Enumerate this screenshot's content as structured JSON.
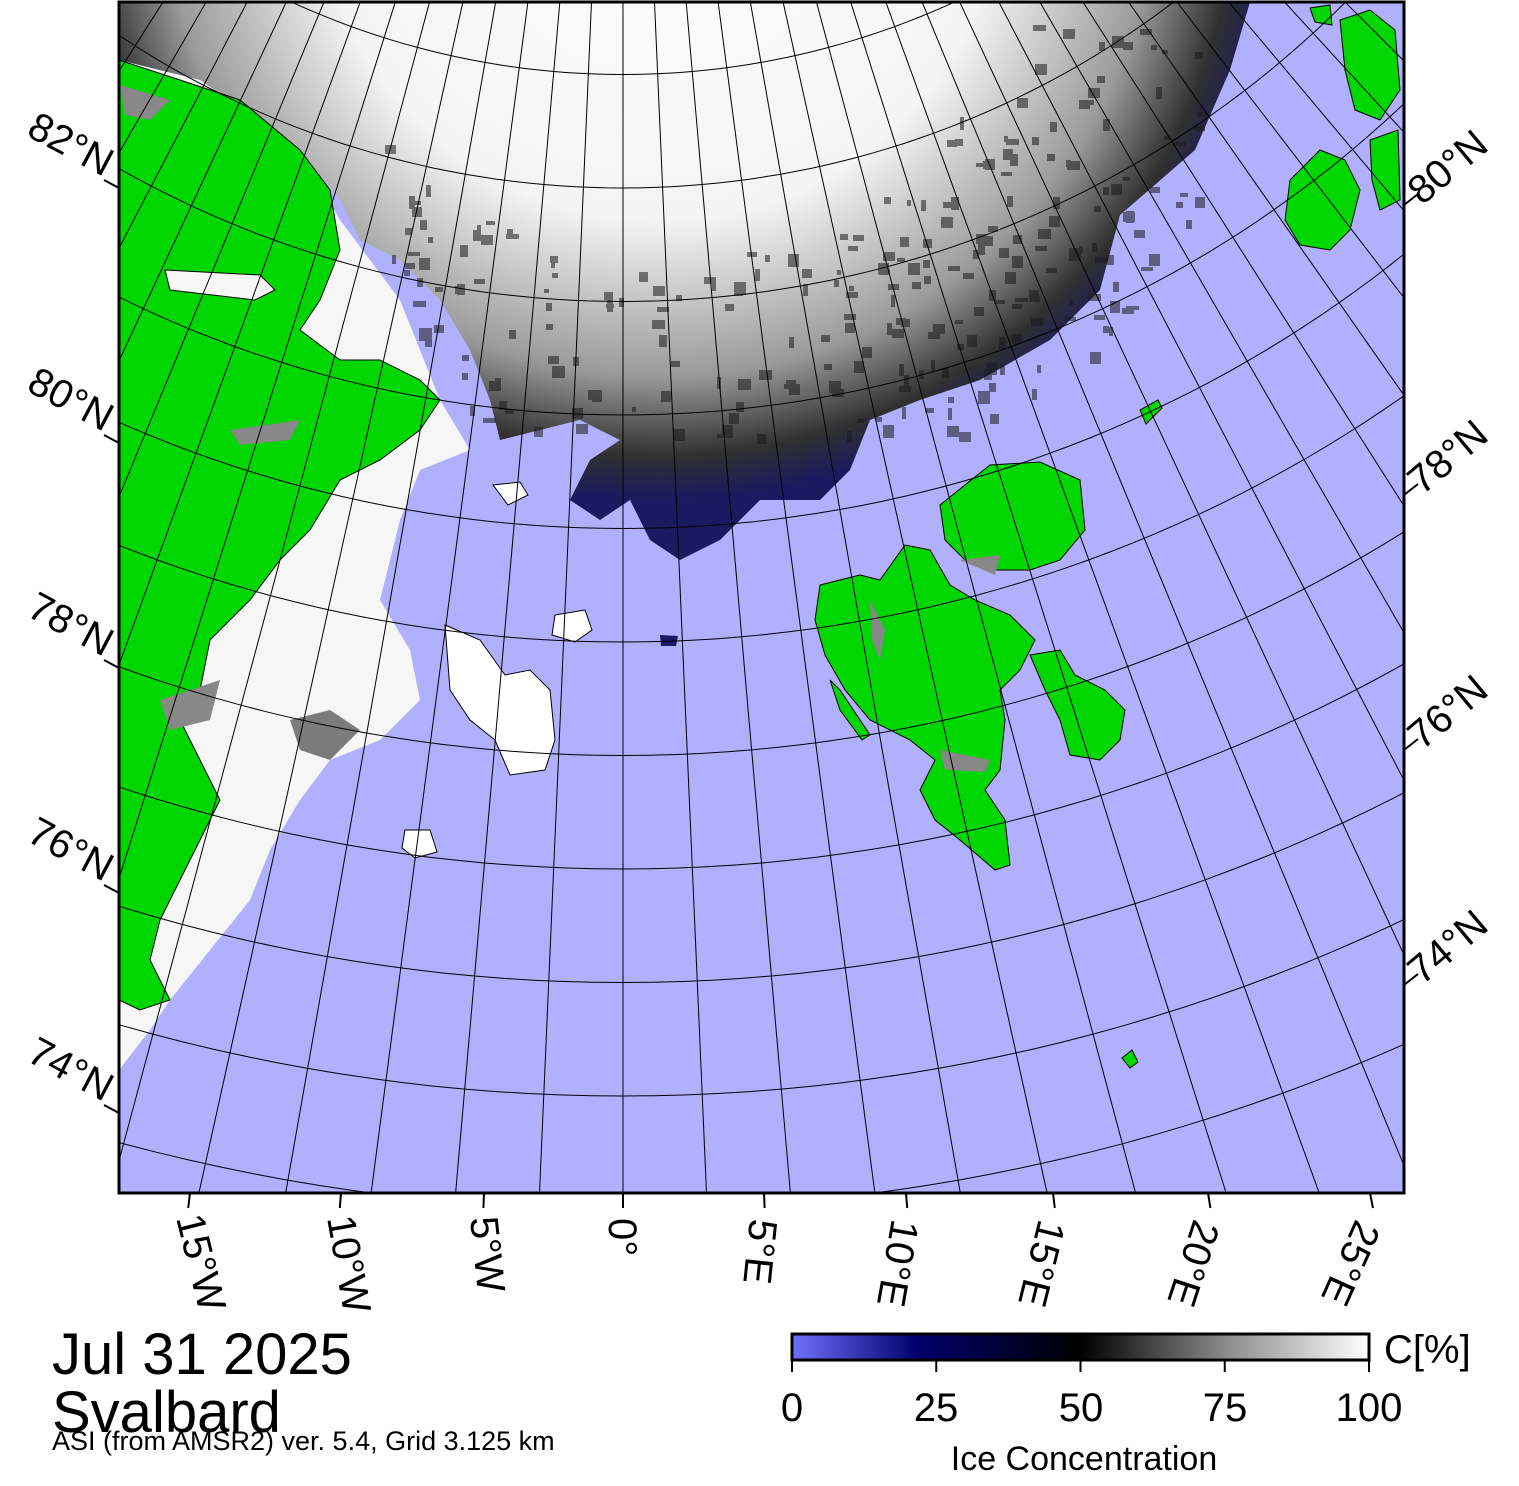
{
  "title": {
    "date": "Jul 31 2025",
    "region": "Svalbard",
    "subtitle": "ASI (from AMSR2) ver. 5.4,  Grid 3.125 km"
  },
  "map": {
    "lat_labels_left": [
      "82°N",
      "80°N",
      "78°N",
      "76°N",
      "74°N"
    ],
    "lat_labels_right": [
      "80°N",
      "78°N",
      "76°N",
      "74°N"
    ],
    "lon_labels_bottom": [
      "15°W",
      "10°W",
      "5°W",
      "0°",
      "5°E",
      "10°E",
      "15°E",
      "20°E",
      "25°E"
    ],
    "colors": {
      "open_water": "#b0b0ff",
      "land": "#00d700",
      "coast_grey": "#888888",
      "full_ice": "#ffffff"
    }
  },
  "colorbar": {
    "title": "Ice Concentration",
    "unit": "C[%]",
    "ticks": [
      "0",
      "25",
      "50",
      "75",
      "100"
    ],
    "range": [
      0,
      100
    ]
  }
}
